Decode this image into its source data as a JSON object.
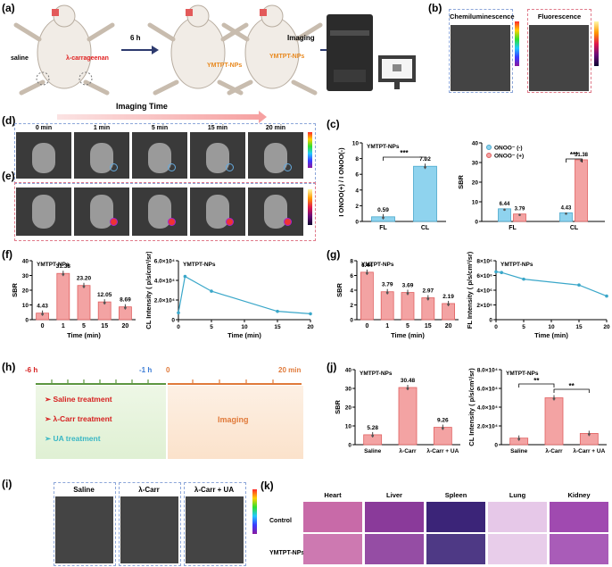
{
  "panel_labels": {
    "a": "(a)",
    "b": "(b)",
    "c": "(c)",
    "d": "(d)",
    "e": "(e)",
    "f": "(f)",
    "g": "(g)",
    "h": "(h)",
    "i": "(i)",
    "j": "(j)",
    "k": "(k)"
  },
  "a": {
    "saline": "saline",
    "carr": "λ-carrageenan",
    "time": "6 h",
    "probe1": "YMTPT-NPs",
    "probe2": "YMTPT-NPs",
    "imaging": "Imaging"
  },
  "b": {
    "cl": "Chemiluminescence",
    "fl": "Fluorescence"
  },
  "de": {
    "imaging_time": "Imaging Time",
    "times": [
      "0 min",
      "1 min",
      "5 min",
      "15 min",
      "20 min"
    ]
  },
  "h": {
    "t_start": "-6 h",
    "t_mid": "-1 h",
    "t_zero": "0",
    "t_end": "20 min",
    "items": [
      "Saline treatment",
      "λ-Carr treatment",
      "UA treatment"
    ],
    "imaging": "Imaging"
  },
  "i": {
    "labels": [
      "Saline",
      "λ-Carr",
      "λ-Carr + UA"
    ]
  },
  "k": {
    "cols": [
      "Heart",
      "Liver",
      "Spleen",
      "Lung",
      "Kidney"
    ],
    "rows": [
      "Control",
      "YMTPT-NPs"
    ]
  },
  "chart_data": [
    {
      "id": "c1",
      "type": "bar",
      "title": "YMTPT-NPs",
      "categories": [
        "FL",
        "CL"
      ],
      "values": [
        0.59,
        7.02
      ],
      "data_labels": [
        "0.59",
        "7.02"
      ],
      "ylabel": "I ONOO(+) / I ONOO(-)",
      "ylim": [
        0,
        10
      ],
      "yticks": [
        0,
        2,
        4,
        6,
        8,
        10
      ],
      "significance": "***",
      "color": "#8fd3ee"
    },
    {
      "id": "c2",
      "type": "bar",
      "categories": [
        "FL",
        "CL"
      ],
      "series": [
        {
          "name": "ONOO⁻ (-)",
          "values": [
            6.44,
            4.43
          ],
          "data_labels": [
            "6.44",
            "4.43"
          ],
          "color": "#8fd3ee"
        },
        {
          "name": "ONOO⁻ (+)",
          "values": [
            3.79,
            31.38
          ],
          "data_labels": [
            "3.79",
            "31.38"
          ],
          "color": "#f3a3a3"
        }
      ],
      "ylabel": "SBR",
      "ylim": [
        0,
        40
      ],
      "yticks": [
        0,
        10,
        20,
        30,
        40
      ],
      "significance": "***"
    },
    {
      "id": "f1",
      "type": "bar",
      "title": "YMTPT-NPs",
      "categories": [
        "0",
        "1",
        "5",
        "15",
        "20"
      ],
      "values": [
        4.43,
        31.38,
        23.2,
        12.05,
        8.69
      ],
      "data_labels": [
        "4.43",
        "31.38",
        "23.20",
        "12.05",
        "8.69"
      ],
      "xlabel": "Time (min)",
      "ylabel": "SBR",
      "ylim": [
        0,
        40
      ],
      "yticks": [
        0,
        10,
        20,
        30,
        40
      ],
      "color": "#f3a3a3"
    },
    {
      "id": "f2",
      "type": "line",
      "title": "YMTPT-NPs",
      "x": [
        0,
        1,
        5,
        15,
        20
      ],
      "values": [
        7000,
        44000,
        29000,
        8500,
        6000
      ],
      "xlabel": "Time (min)",
      "ylabel": "CL Intensity ( p/s/cm²/sr)",
      "ylim": [
        0,
        60000
      ],
      "yticks": [
        0,
        20000,
        40000,
        60000
      ],
      "ytick_labels": [
        "0",
        "2.0×10⁴",
        "4.0×10⁴",
        "6.0×10⁴"
      ],
      "xticks": [
        0,
        5,
        10,
        15,
        20
      ],
      "color": "#3aa7c9"
    },
    {
      "id": "g1",
      "type": "bar",
      "title": "YMTPT-NPs",
      "categories": [
        "0",
        "1",
        "5",
        "15",
        "20"
      ],
      "values": [
        6.44,
        3.79,
        3.69,
        2.97,
        2.19
      ],
      "data_labels": [
        "6.44",
        "3.79",
        "3.69",
        "2.97",
        "2.19"
      ],
      "xlabel": "Time (min)",
      "ylabel": "SBR",
      "ylim": [
        0,
        8
      ],
      "yticks": [
        0,
        2,
        4,
        6,
        8
      ],
      "color": "#f3a3a3"
    },
    {
      "id": "g2",
      "type": "line",
      "title": "YMTPT-NPs",
      "x": [
        0,
        1,
        5,
        15,
        20
      ],
      "values": [
        6500000,
        6400000,
        5500000,
        4700000,
        3200000
      ],
      "xlabel": "Time (min)",
      "ylabel": "FL Intensity ( p/s/cm²/sr)",
      "ylim": [
        0,
        8000000
      ],
      "yticks": [
        0,
        2000000,
        4000000,
        6000000,
        8000000
      ],
      "ytick_labels": [
        "0",
        "2×10⁶",
        "4×10⁶",
        "6×10⁶",
        "8×10⁶"
      ],
      "xticks": [
        0,
        5,
        10,
        15,
        20
      ],
      "color": "#3aa7c9"
    },
    {
      "id": "j1",
      "type": "bar",
      "title": "YMTPT-NPs",
      "categories": [
        "Saline",
        "λ-Carr",
        "λ-Carr + UA"
      ],
      "values": [
        5.28,
        30.48,
        9.26
      ],
      "data_labels": [
        "5.28",
        "30.48",
        "9.26"
      ],
      "ylabel": "SBR",
      "ylim": [
        0,
        40
      ],
      "yticks": [
        0,
        10,
        20,
        30,
        40
      ],
      "color": "#f3a3a3"
    },
    {
      "id": "j2",
      "type": "bar",
      "title": "YMTPT-NPs",
      "categories": [
        "Saline",
        "λ-Carr",
        "λ-Carr + UA"
      ],
      "values": [
        7000,
        50000,
        12000
      ],
      "ylabel": "CL Intensity ( p/s/cm²/sr)",
      "ylim": [
        0,
        80000
      ],
      "yticks": [
        0,
        20000,
        40000,
        60000,
        80000
      ],
      "ytick_labels": [
        "0",
        "2.0×10⁴",
        "4.0×10⁴",
        "6.0×10⁴",
        "8.0×10⁴"
      ],
      "significance": [
        "**",
        "**"
      ],
      "color": "#f3a3a3"
    }
  ]
}
